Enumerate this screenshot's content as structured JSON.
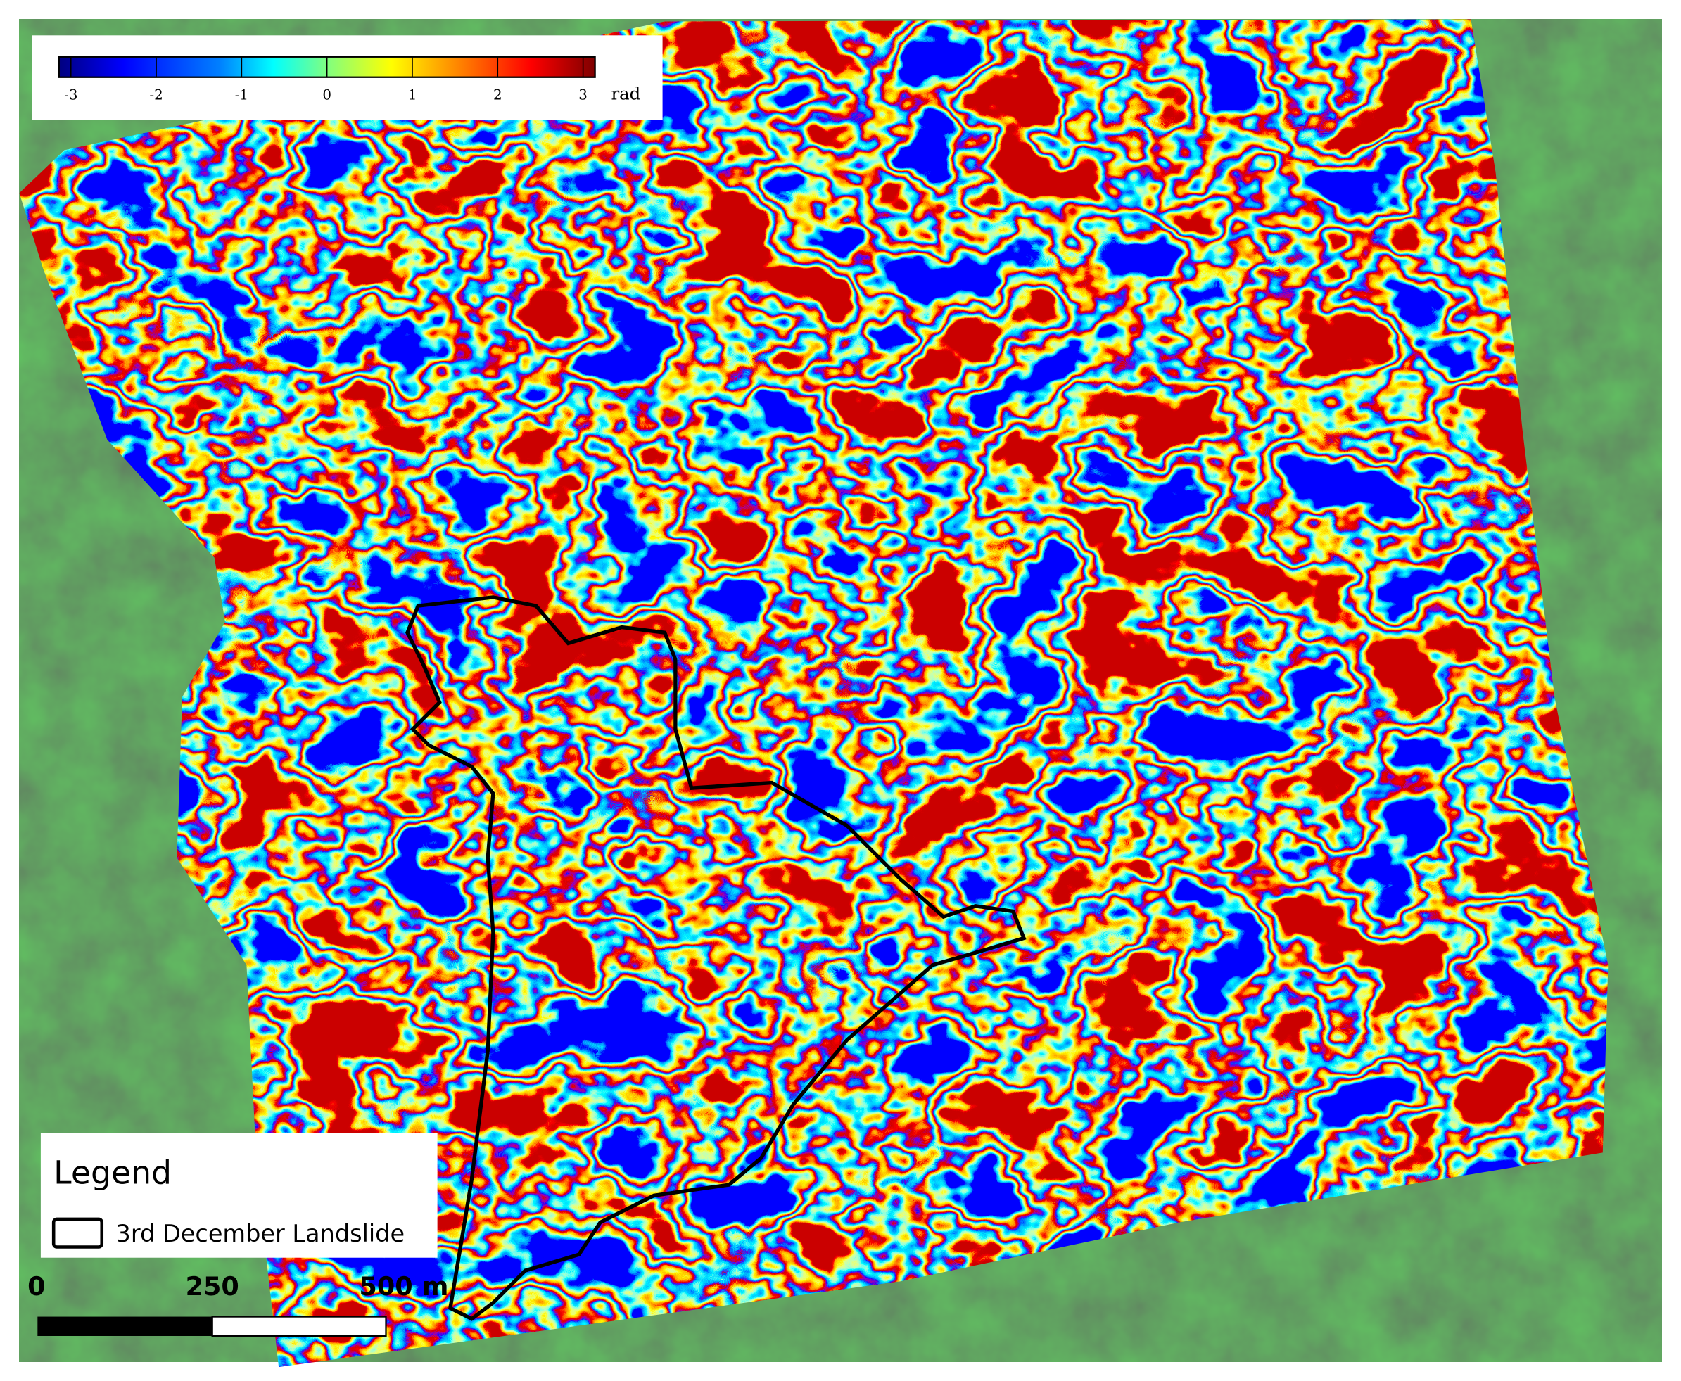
{
  "colorbar": {
    "range": [
      -3.14,
      3.14
    ],
    "ticks": [
      -3,
      -2,
      -1,
      0,
      1,
      2,
      3
    ],
    "unit": "rad"
  },
  "legend": {
    "title": "Legend",
    "items": [
      "3rd December Landslide"
    ]
  },
  "scale_bar": {
    "labels": [
      "0",
      "250",
      "500 m"
    ]
  }
}
